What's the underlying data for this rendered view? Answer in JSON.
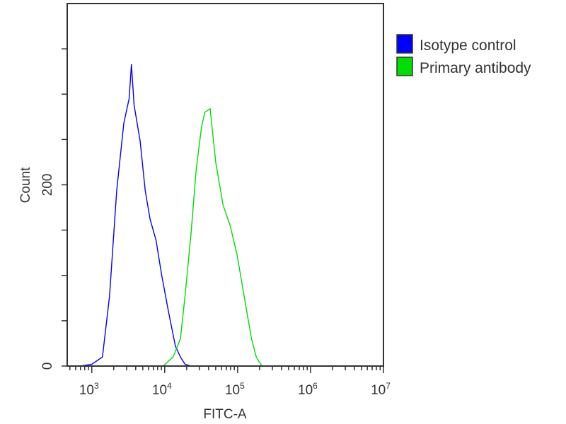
{
  "chart_data": {
    "type": "line",
    "title": "",
    "xlabel": "FITC-A",
    "ylabel": "Count",
    "x_scale": "log",
    "xlim": [
      460,
      10000000
    ],
    "ylim": [
      0,
      400
    ],
    "x_ticks": [
      {
        "base": "10",
        "exp": "3",
        "value": 1000
      },
      {
        "base": "10",
        "exp": "4",
        "value": 10000
      },
      {
        "base": "10",
        "exp": "5",
        "value": 100000
      },
      {
        "base": "10",
        "exp": "6",
        "value": 1000000
      },
      {
        "base": "10",
        "exp": "7",
        "value": 10000000
      }
    ],
    "y_tick_labels": [
      {
        "label": "0",
        "value": 0
      },
      {
        "label": "200",
        "value": 200
      }
    ],
    "y_minor_ticks": [
      50,
      100,
      150,
      250,
      300,
      350
    ],
    "grid": false,
    "legend_position": "right",
    "series": [
      {
        "name": "Isotype control",
        "color": "#0000ff",
        "x": [
          700,
          1000,
          1400,
          1750,
          2200,
          2750,
          3250,
          3500,
          3800,
          4600,
          5400,
          6300,
          7600,
          9100,
          11200,
          14000,
          16400,
          19000,
          23000
        ],
        "y": [
          0,
          2,
          10,
          77,
          194,
          268,
          295,
          333,
          288,
          248,
          194,
          162,
          139,
          100,
          61,
          22,
          10,
          2,
          0
        ]
      },
      {
        "name": "Primary antibody",
        "color": "#00dd00",
        "x": [
          9500,
          13000,
          16400,
          19000,
          23000,
          27000,
          32000,
          35500,
          42000,
          50000,
          63000,
          79000,
          98000,
          123000,
          155000,
          180000,
          215000
        ],
        "y": [
          0,
          10,
          30,
          77,
          147,
          217,
          264,
          280,
          284,
          225,
          178,
          155,
          123,
          77,
          30,
          10,
          0
        ]
      }
    ]
  }
}
